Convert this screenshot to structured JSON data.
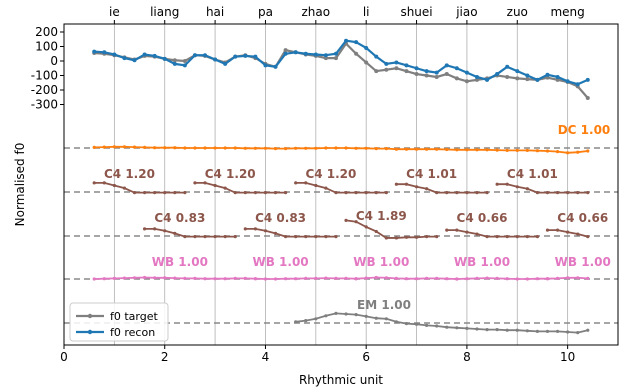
{
  "chart_data": {
    "type": "line",
    "xlabel": "Rhythmic unit",
    "ylabel": "Normalised f0",
    "xlim": [
      0,
      11
    ],
    "x_ticks": [
      0,
      2,
      4,
      6,
      8,
      10
    ],
    "y_ticks": [
      200,
      100,
      0,
      -100,
      -200,
      -300
    ],
    "grid": "vertical",
    "legend_position": "lower-left",
    "top_labels": [
      {
        "x": 1.0,
        "label": "ie"
      },
      {
        "x": 2.0,
        "label": "liang"
      },
      {
        "x": 3.0,
        "label": "hai"
      },
      {
        "x": 4.0,
        "label": "pa"
      },
      {
        "x": 5.0,
        "label": "zhao"
      },
      {
        "x": 6.0,
        "label": "li"
      },
      {
        "x": 7.0,
        "label": "shuei"
      },
      {
        "x": 8.0,
        "label": "jiao"
      },
      {
        "x": 9.0,
        "label": "zuo"
      },
      {
        "x": 10.0,
        "label": "meng"
      }
    ],
    "series": [
      {
        "name": "f0 target",
        "color": "#7f7f7f",
        "x": [
          0.6,
          0.8,
          1.0,
          1.2,
          1.4,
          1.6,
          1.8,
          2.0,
          2.2,
          2.4,
          2.6,
          2.8,
          3.0,
          3.2,
          3.4,
          3.6,
          3.8,
          4.0,
          4.2,
          4.4,
          4.6,
          4.8,
          5.0,
          5.2,
          5.4,
          5.6,
          5.8,
          6.0,
          6.2,
          6.4,
          6.6,
          6.8,
          7.0,
          7.2,
          7.4,
          7.6,
          7.8,
          8.0,
          8.2,
          8.4,
          8.6,
          8.8,
          9.0,
          9.2,
          9.4,
          9.6,
          9.8,
          10.0,
          10.2,
          10.4
        ],
        "values": [
          55,
          50,
          40,
          25,
          10,
          35,
          30,
          15,
          5,
          0,
          40,
          35,
          10,
          -10,
          30,
          40,
          20,
          -20,
          -40,
          75,
          60,
          45,
          35,
          20,
          20,
          120,
          50,
          -10,
          -70,
          -60,
          -50,
          -70,
          -90,
          -100,
          -110,
          -90,
          -120,
          -140,
          -130,
          -120,
          -100,
          -110,
          -120,
          -125,
          -130,
          -115,
          -130,
          -145,
          -175,
          -255
        ]
      },
      {
        "name": "f0 recon",
        "color": "#1f77b4",
        "x": [
          0.6,
          0.8,
          1.0,
          1.2,
          1.4,
          1.6,
          1.8,
          2.0,
          2.2,
          2.4,
          2.6,
          2.8,
          3.0,
          3.2,
          3.4,
          3.6,
          3.8,
          4.0,
          4.2,
          4.4,
          4.6,
          4.8,
          5.0,
          5.2,
          5.4,
          5.6,
          5.8,
          6.0,
          6.2,
          6.4,
          6.6,
          6.8,
          7.0,
          7.2,
          7.4,
          7.6,
          7.8,
          8.0,
          8.2,
          8.4,
          8.6,
          8.8,
          9.0,
          9.2,
          9.4,
          9.6,
          9.8,
          10.0,
          10.2,
          10.4
        ],
        "values": [
          65,
          60,
          45,
          20,
          5,
          45,
          35,
          15,
          -20,
          -30,
          40,
          40,
          10,
          -20,
          30,
          35,
          30,
          -30,
          -40,
          50,
          60,
          50,
          45,
          40,
          50,
          140,
          130,
          90,
          30,
          -20,
          -10,
          -30,
          -50,
          -70,
          -80,
          -30,
          -50,
          -80,
          -110,
          -130,
          -90,
          -40,
          -70,
          -100,
          -130,
          -95,
          -110,
          -140,
          -160,
          -130
        ]
      }
    ],
    "components": [
      {
        "label": "DC 1.00",
        "color": "#ff7f0e",
        "label_x": 10.3,
        "label_y": 1.0,
        "baseline": 0.0,
        "x": [
          0.6,
          0.8,
          1.0,
          1.2,
          1.4,
          1.6,
          1.8,
          2.0,
          2.2,
          2.4,
          2.6,
          2.8,
          3.0,
          3.2,
          3.4,
          3.6,
          3.8,
          4.0,
          4.2,
          4.4,
          4.6,
          4.8,
          5.0,
          5.2,
          5.4,
          5.6,
          5.8,
          6.0,
          6.2,
          6.4,
          6.6,
          6.8,
          7.0,
          7.2,
          7.4,
          7.6,
          7.8,
          8.0,
          8.2,
          8.4,
          8.6,
          8.8,
          9.0,
          9.2,
          9.4,
          9.6,
          9.8,
          10.0,
          10.2,
          10.4
        ],
        "values": [
          0.1,
          0.15,
          0.2,
          0.2,
          0.15,
          0.1,
          0.05,
          0.05,
          0.05,
          0.0,
          0.0,
          0.0,
          0.0,
          0.0,
          0.0,
          -0.05,
          -0.05,
          -0.05,
          -0.1,
          -0.1,
          -0.05,
          -0.05,
          -0.05,
          0.0,
          0.0,
          0.0,
          -0.05,
          -0.05,
          -0.1,
          -0.1,
          -0.2,
          -0.2,
          -0.2,
          -0.2,
          -0.2,
          -0.25,
          -0.3,
          -0.3,
          -0.3,
          -0.3,
          -0.35,
          -0.4,
          -0.4,
          -0.4,
          -0.45,
          -0.5,
          -0.6,
          -0.8,
          -0.7,
          -0.5
        ]
      },
      {
        "label": "C4 1.20",
        "color": "#8c564b",
        "label_x": 1.3,
        "label_y": 1.4,
        "baseline": 0.0,
        "x": [
          0.6,
          0.8,
          1.0,
          1.2,
          1.4,
          1.6,
          1.8,
          2.0,
          2.2,
          2.4
        ],
        "values": [
          0.7,
          0.7,
          0.5,
          0.3,
          -0.05,
          -0.05,
          -0.05,
          -0.05,
          -0.05,
          -0.05
        ]
      },
      {
        "label": "C4 1.20",
        "color": "#8c564b",
        "label_x": 3.3,
        "label_y": 1.4,
        "baseline": 0.0,
        "x": [
          2.6,
          2.8,
          3.0,
          3.2,
          3.4,
          3.6,
          3.8,
          4.0,
          4.2,
          4.4
        ],
        "values": [
          0.7,
          0.7,
          0.5,
          0.3,
          -0.05,
          -0.05,
          -0.05,
          -0.05,
          -0.05,
          -0.05
        ]
      },
      {
        "label": "C4 1.20",
        "color": "#8c564b",
        "label_x": 5.3,
        "label_y": 1.4,
        "baseline": 0.0,
        "x": [
          4.6,
          4.8,
          5.0,
          5.2,
          5.4,
          5.6,
          5.8,
          6.0,
          6.2,
          6.4
        ],
        "values": [
          0.7,
          0.7,
          0.5,
          0.3,
          -0.05,
          -0.05,
          -0.05,
          -0.05,
          -0.05,
          -0.05
        ]
      },
      {
        "label": "C4 1.01",
        "color": "#8c564b",
        "label_x": 7.3,
        "label_y": 1.4,
        "baseline": 0.0,
        "x": [
          6.6,
          6.8,
          7.0,
          7.2,
          7.4,
          7.6,
          7.8,
          8.0,
          8.2,
          8.4
        ],
        "values": [
          0.6,
          0.6,
          0.4,
          0.25,
          -0.05,
          -0.05,
          -0.05,
          -0.05,
          -0.05,
          -0.05
        ]
      },
      {
        "label": "C4 1.01",
        "color": "#8c564b",
        "label_x": 9.3,
        "label_y": 1.4,
        "baseline": 0.0,
        "x": [
          8.6,
          8.8,
          9.0,
          9.2,
          9.4,
          9.6,
          9.8,
          10.0,
          10.2,
          10.4
        ],
        "values": [
          0.6,
          0.6,
          0.4,
          0.25,
          -0.05,
          -0.05,
          -0.05,
          -0.05,
          -0.05,
          -0.05
        ]
      },
      {
        "label": "C4 0.83",
        "color": "#8c564b",
        "label_x": 2.3,
        "label_y": 1.4,
        "baseline": 0.0,
        "x": [
          1.6,
          1.8,
          2.0,
          2.2,
          2.4,
          2.6,
          2.8,
          3.0,
          3.2,
          3.4
        ],
        "values": [
          0.55,
          0.55,
          0.4,
          0.2,
          -0.05,
          -0.05,
          -0.05,
          -0.05,
          -0.05,
          -0.05
        ]
      },
      {
        "label": "C4 0.83",
        "color": "#8c564b",
        "label_x": 4.3,
        "label_y": 1.4,
        "baseline": 0.0,
        "x": [
          3.6,
          3.8,
          4.0,
          4.2,
          4.4,
          4.6,
          4.8,
          5.0,
          5.2,
          5.4
        ],
        "values": [
          0.55,
          0.55,
          0.4,
          0.2,
          -0.05,
          -0.05,
          -0.05,
          -0.05,
          -0.05,
          -0.05
        ]
      },
      {
        "label": "C4 1.89",
        "color": "#8c564b",
        "label_x": 6.3,
        "label_y": 1.4,
        "baseline": 0.0,
        "x": [
          5.6,
          5.8,
          6.0,
          6.2,
          6.4,
          6.6,
          6.8,
          7.0,
          7.2,
          7.4
        ],
        "values": [
          1.2,
          1.1,
          0.7,
          0.35,
          -0.15,
          -0.15,
          -0.1,
          -0.1,
          -0.05,
          -0.05
        ]
      },
      {
        "label": "C4 0.66",
        "color": "#8c564b",
        "label_x": 8.3,
        "label_y": 1.4,
        "baseline": 0.0,
        "x": [
          7.6,
          7.8,
          8.0,
          8.2,
          8.4,
          8.6,
          8.8,
          9.0,
          9.2,
          9.4
        ],
        "values": [
          0.45,
          0.45,
          0.3,
          0.15,
          -0.05,
          -0.05,
          -0.05,
          -0.05,
          -0.05,
          -0.05
        ]
      },
      {
        "label": "C4 0.66",
        "color": "#8c564b",
        "label_x": 10.3,
        "label_y": 1.4,
        "baseline": 0.0,
        "x": [
          9.6,
          9.8,
          10.0,
          10.2,
          10.4
        ],
        "values": [
          0.45,
          0.45,
          0.3,
          0.15,
          -0.05
        ]
      },
      {
        "label": "WB 1.00",
        "color": "#e377c2",
        "label_x": 2.3,
        "label_y": 1.4,
        "baseline": 0.0,
        "x": [
          0.6,
          0.8,
          1.0,
          1.2,
          1.4,
          1.6,
          1.8,
          2.0,
          2.2,
          2.4,
          2.6,
          2.8,
          3.0,
          3.2,
          3.4,
          3.6,
          3.8
        ],
        "values": [
          0.0,
          0.05,
          0.1,
          0.15,
          0.2,
          0.25,
          0.2,
          0.2,
          0.15,
          0.1,
          0.1,
          0.05,
          0.05,
          0.05,
          0.1,
          0.1,
          0.05
        ]
      },
      {
        "label": "WB 1.00",
        "color": "#e377c2",
        "label_x": 4.3,
        "label_y": 1.4,
        "baseline": 0.0,
        "x": [
          3.8,
          4.0,
          4.2,
          4.4,
          4.6,
          4.8,
          5.0,
          5.2,
          5.4,
          5.6,
          5.8
        ],
        "values": [
          0.05,
          0.0,
          0.0,
          0.05,
          0.05,
          0.1,
          0.1,
          0.15,
          0.1,
          0.1,
          0.05
        ]
      },
      {
        "label": "WB 1.00",
        "color": "#e377c2",
        "label_x": 6.3,
        "label_y": 1.4,
        "baseline": 0.0,
        "x": [
          5.8,
          6.0,
          6.2,
          6.4,
          6.6,
          6.8,
          7.0,
          7.2,
          7.4,
          7.6,
          7.8
        ],
        "values": [
          0.05,
          0.15,
          0.25,
          0.2,
          0.1,
          0.05,
          0.05,
          0.1,
          0.1,
          0.05,
          0.0
        ]
      },
      {
        "label": "WB 1.00",
        "color": "#e377c2",
        "label_x": 8.3,
        "label_y": 1.4,
        "baseline": 0.0,
        "x": [
          7.8,
          8.0,
          8.2,
          8.4,
          8.6,
          8.8,
          9.0,
          9.2,
          9.4,
          9.6
        ],
        "values": [
          0.0,
          0.05,
          0.1,
          0.15,
          0.1,
          0.05,
          0.0,
          0.0,
          0.05,
          0.05
        ]
      },
      {
        "label": "WB 1.00",
        "color": "#e377c2",
        "label_x": 10.3,
        "label_y": 1.4,
        "baseline": 0.0,
        "x": [
          9.6,
          9.8,
          10.0,
          10.2,
          10.4
        ],
        "values": [
          0.05,
          0.1,
          0.2,
          0.2,
          0.1
        ]
      },
      {
        "label": "EM 1.00",
        "color": "#7f7f7f",
        "label_x": 6.3,
        "label_y": 1.8,
        "baseline": 0.0,
        "x": [
          4.6,
          4.8,
          5.0,
          5.2,
          5.4,
          5.6,
          5.8,
          6.0,
          6.2,
          6.4,
          6.6,
          6.8,
          7.0,
          7.2,
          7.4,
          7.6,
          7.8,
          8.0,
          8.2,
          8.4,
          8.6,
          8.8,
          9.0,
          9.2,
          9.4,
          9.6,
          9.8,
          10.0,
          10.2,
          10.4
        ],
        "values": [
          0.1,
          0.2,
          0.35,
          0.6,
          0.8,
          0.75,
          0.7,
          0.55,
          0.4,
          0.35,
          0.1,
          -0.05,
          -0.1,
          -0.2,
          -0.25,
          -0.35,
          -0.4,
          -0.45,
          -0.5,
          -0.55,
          -0.55,
          -0.6,
          -0.6,
          -0.65,
          -0.7,
          -0.7,
          -0.7,
          -0.75,
          -0.8,
          -0.6
        ]
      }
    ]
  }
}
